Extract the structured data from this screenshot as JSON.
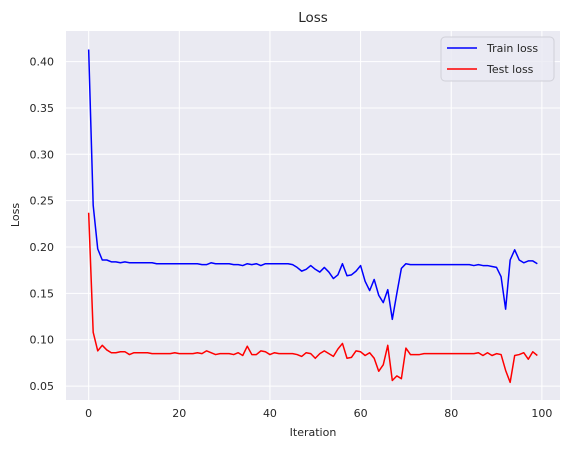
{
  "chart_data": {
    "type": "line",
    "title": "Loss",
    "xlabel": "Iteration",
    "ylabel": "Loss",
    "xlim": [
      -5,
      104
    ],
    "ylim": [
      0.035,
      0.433
    ],
    "xticks": [
      0,
      20,
      40,
      60,
      80,
      100
    ],
    "yticks": [
      0.05,
      0.1,
      0.15,
      0.2,
      0.25,
      0.3,
      0.35,
      0.4
    ],
    "xtick_labels": [
      "0",
      "20",
      "40",
      "60",
      "80",
      "100"
    ],
    "ytick_labels": [
      "0.05",
      "0.10",
      "0.15",
      "0.20",
      "0.25",
      "0.30",
      "0.35",
      "0.40"
    ],
    "grid": true,
    "legend_position": "top-right",
    "x": [
      0,
      1,
      2,
      3,
      4,
      5,
      6,
      7,
      8,
      9,
      10,
      11,
      12,
      13,
      14,
      15,
      16,
      17,
      18,
      19,
      20,
      21,
      22,
      23,
      24,
      25,
      26,
      27,
      28,
      29,
      30,
      31,
      32,
      33,
      34,
      35,
      36,
      37,
      38,
      39,
      40,
      41,
      42,
      43,
      44,
      45,
      46,
      47,
      48,
      49,
      50,
      51,
      52,
      53,
      54,
      55,
      56,
      57,
      58,
      59,
      60,
      61,
      62,
      63,
      64,
      65,
      66,
      67,
      68,
      69,
      70,
      71,
      72,
      73,
      74,
      75,
      76,
      77,
      78,
      79,
      80,
      81,
      82,
      83,
      84,
      85,
      86,
      87,
      88,
      89,
      90,
      91,
      92,
      93,
      94,
      95,
      96,
      97,
      98,
      99
    ],
    "series": [
      {
        "name": "Train loss",
        "color": "#0000ff",
        "values": [
          0.413,
          0.245,
          0.198,
          0.186,
          0.186,
          0.184,
          0.184,
          0.183,
          0.184,
          0.183,
          0.183,
          0.183,
          0.183,
          0.183,
          0.183,
          0.182,
          0.182,
          0.182,
          0.182,
          0.182,
          0.182,
          0.182,
          0.182,
          0.182,
          0.182,
          0.181,
          0.181,
          0.183,
          0.182,
          0.182,
          0.182,
          0.182,
          0.181,
          0.181,
          0.18,
          0.182,
          0.181,
          0.182,
          0.18,
          0.182,
          0.182,
          0.182,
          0.182,
          0.182,
          0.182,
          0.181,
          0.178,
          0.174,
          0.176,
          0.18,
          0.176,
          0.173,
          0.178,
          0.173,
          0.166,
          0.17,
          0.182,
          0.169,
          0.17,
          0.174,
          0.18,
          0.163,
          0.153,
          0.165,
          0.148,
          0.14,
          0.154,
          0.122,
          0.15,
          0.177,
          0.182,
          0.181,
          0.181,
          0.181,
          0.181,
          0.181,
          0.181,
          0.181,
          0.181,
          0.181,
          0.181,
          0.181,
          0.181,
          0.181,
          0.181,
          0.18,
          0.181,
          0.18,
          0.18,
          0.179,
          0.178,
          0.168,
          0.133,
          0.186,
          0.197,
          0.186,
          0.183,
          0.185,
          0.185,
          0.182
        ]
      },
      {
        "name": "Test loss",
        "color": "#ff0000",
        "values": [
          0.237,
          0.108,
          0.088,
          0.094,
          0.089,
          0.086,
          0.086,
          0.087,
          0.087,
          0.084,
          0.086,
          0.086,
          0.086,
          0.086,
          0.085,
          0.085,
          0.085,
          0.085,
          0.085,
          0.086,
          0.085,
          0.085,
          0.085,
          0.085,
          0.086,
          0.085,
          0.088,
          0.086,
          0.084,
          0.085,
          0.085,
          0.085,
          0.084,
          0.086,
          0.083,
          0.093,
          0.084,
          0.084,
          0.088,
          0.087,
          0.084,
          0.086,
          0.085,
          0.085,
          0.085,
          0.085,
          0.084,
          0.082,
          0.086,
          0.085,
          0.08,
          0.085,
          0.088,
          0.085,
          0.082,
          0.09,
          0.096,
          0.08,
          0.081,
          0.088,
          0.087,
          0.083,
          0.086,
          0.08,
          0.066,
          0.073,
          0.094,
          0.056,
          0.061,
          0.058,
          0.091,
          0.084,
          0.084,
          0.084,
          0.085,
          0.085,
          0.085,
          0.085,
          0.085,
          0.085,
          0.085,
          0.085,
          0.085,
          0.085,
          0.085,
          0.085,
          0.086,
          0.083,
          0.086,
          0.083,
          0.085,
          0.084,
          0.067,
          0.054,
          0.083,
          0.084,
          0.086,
          0.079,
          0.087,
          0.083
        ]
      }
    ]
  }
}
